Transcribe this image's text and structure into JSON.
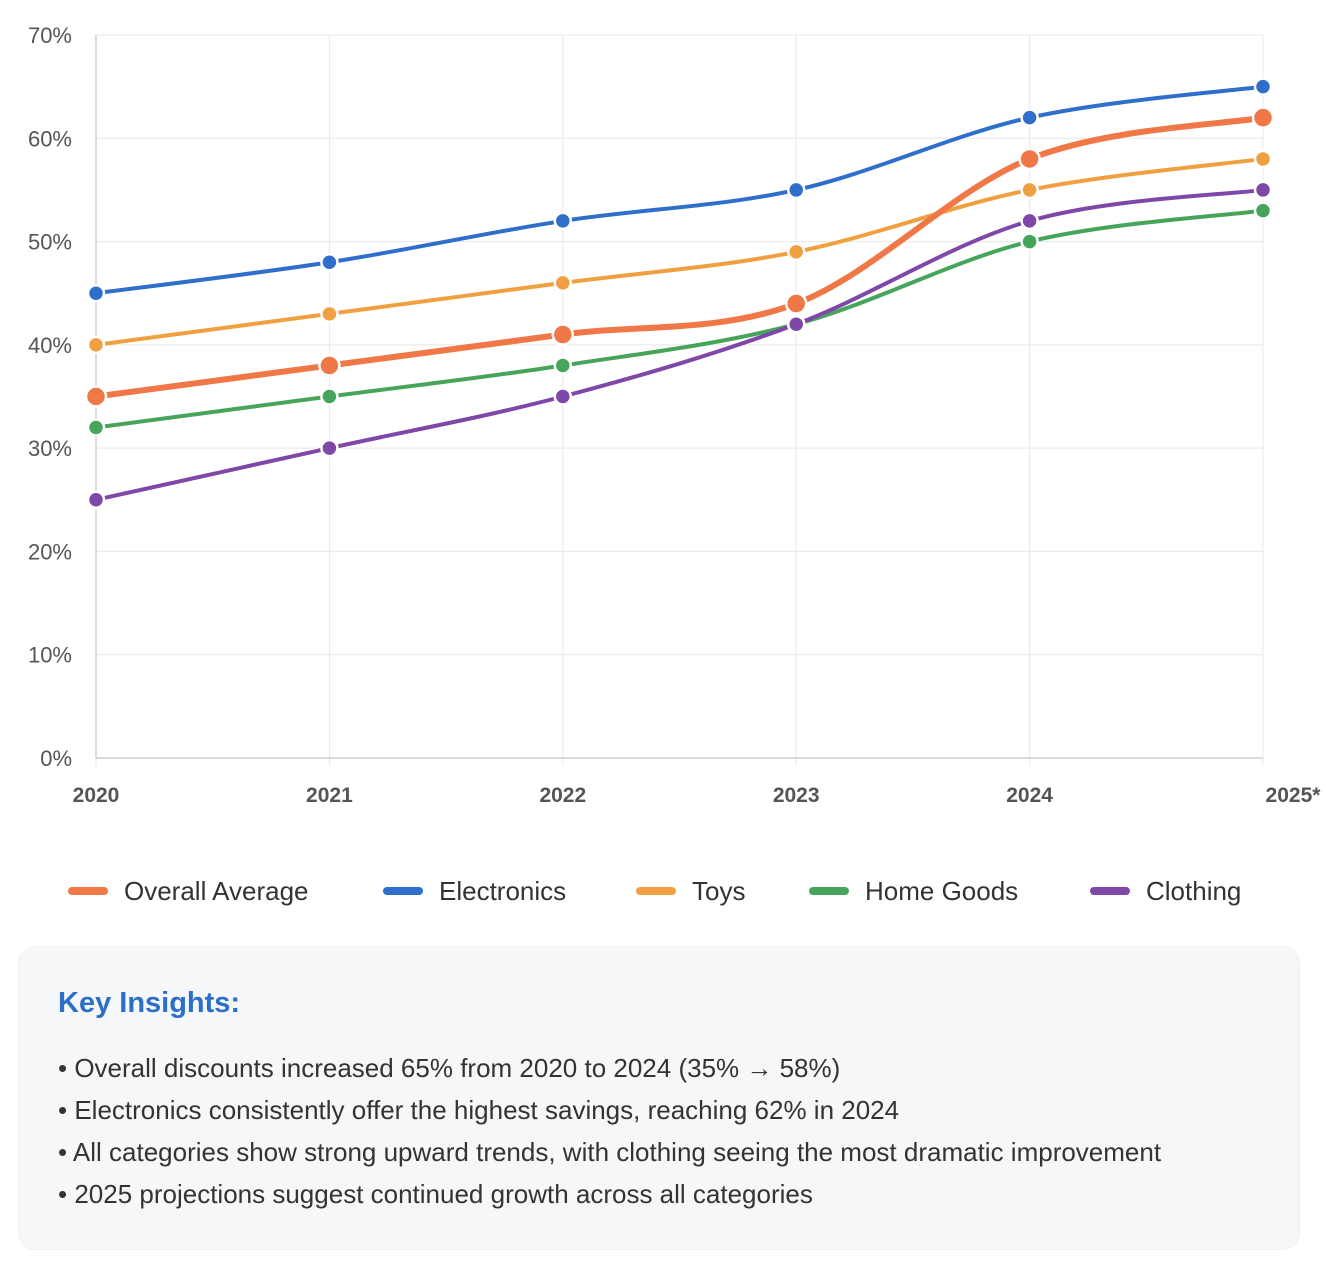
{
  "colors": {
    "overall": "#f07746",
    "electronics": "#2f6fcb",
    "toys": "#f0a040",
    "home_goods": "#47a55b",
    "clothing": "#7e47a8",
    "insights_title": "#2c6fc9",
    "grid": "#e8e8e8",
    "axis_text": "#555555"
  },
  "chart_data": {
    "type": "line",
    "title": "",
    "xlabel": "",
    "ylabel": "",
    "categories": [
      "2020",
      "2021",
      "2022",
      "2023",
      "2024",
      "2025*"
    ],
    "ylim": [
      0,
      70
    ],
    "yticks": [
      "0%",
      "10%",
      "20%",
      "30%",
      "40%",
      "50%",
      "60%",
      "70%"
    ],
    "grid": true,
    "legend_position": "bottom",
    "series": [
      {
        "key": "overall",
        "name": "Overall Average",
        "color": "#f07746",
        "emphasis": true,
        "values": [
          35,
          38,
          41,
          44,
          58,
          62
        ]
      },
      {
        "key": "electronics",
        "name": "Electronics",
        "color": "#2f6fcb",
        "emphasis": false,
        "values": [
          45,
          48,
          52,
          55,
          62,
          65
        ]
      },
      {
        "key": "toys",
        "name": "Toys",
        "color": "#f0a040",
        "emphasis": false,
        "values": [
          40,
          43,
          46,
          49,
          55,
          58
        ]
      },
      {
        "key": "home_goods",
        "name": "Home Goods",
        "color": "#47a55b",
        "emphasis": false,
        "values": [
          32,
          35,
          38,
          42,
          50,
          53
        ]
      },
      {
        "key": "clothing",
        "name": "Clothing",
        "color": "#7e47a8",
        "emphasis": false,
        "values": [
          25,
          30,
          35,
          42,
          52,
          55
        ]
      }
    ]
  },
  "insights": {
    "title": "Key Insights:",
    "items": [
      "• Overall discounts increased 65% from 2020 to 2024 (35% → 58%)",
      "• Electronics consistently offer the highest savings, reaching 62% in 2024",
      "• All categories show strong upward trends, with clothing seeing the most dramatic improvement",
      "• 2025 projections suggest continued growth across all categories"
    ]
  }
}
